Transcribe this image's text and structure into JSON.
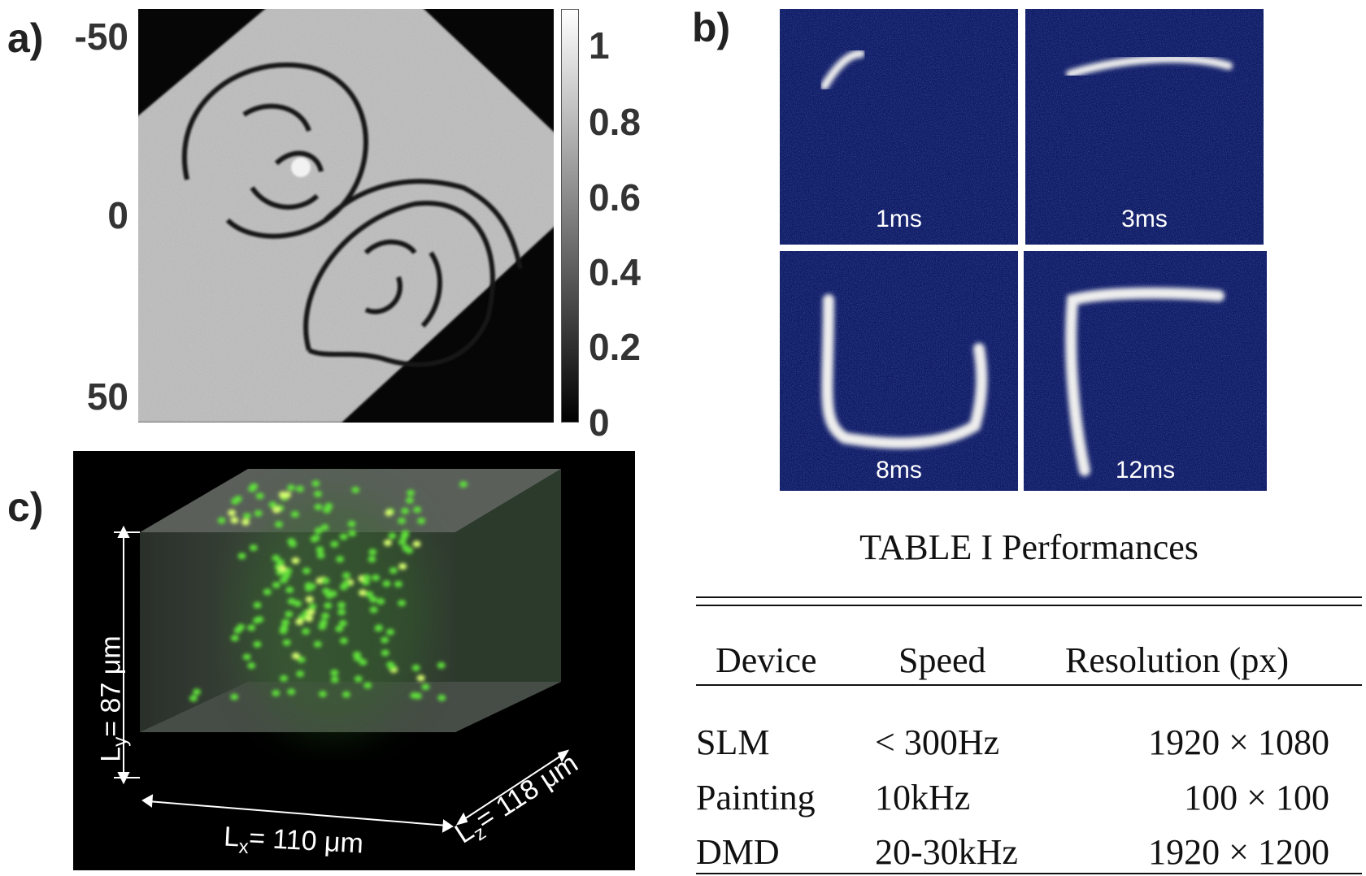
{
  "panel_a": {
    "label": "a)",
    "y_ticks": [
      "-50",
      "0",
      "50"
    ],
    "colorbar_ticks": [
      "1",
      "0.8",
      "0.6",
      "0.4",
      "0.2",
      "0"
    ]
  },
  "panel_b": {
    "label": "b)",
    "frames": [
      "1ms",
      "3ms",
      "8ms",
      "12ms"
    ]
  },
  "panel_c": {
    "label": "c)",
    "dims": [
      {
        "main": "L",
        "sub": "y",
        "rest": "= 87 μm"
      },
      {
        "main": "L",
        "sub": "x",
        "rest": "= 110 μm"
      },
      {
        "main": "L",
        "sub": "z",
        "rest": "= 118 μm"
      }
    ]
  },
  "table": {
    "title": "TABLE I  Performances",
    "header": [
      "Device",
      "Speed",
      "Resolution (px)"
    ],
    "rows": [
      [
        "SLM",
        "< 300Hz",
        "1920 × 1080"
      ],
      [
        "Painting",
        "10kHz",
        "100 × 100"
      ],
      [
        "DMD",
        "20-30kHz",
        "1920 × 1200"
      ]
    ]
  }
}
